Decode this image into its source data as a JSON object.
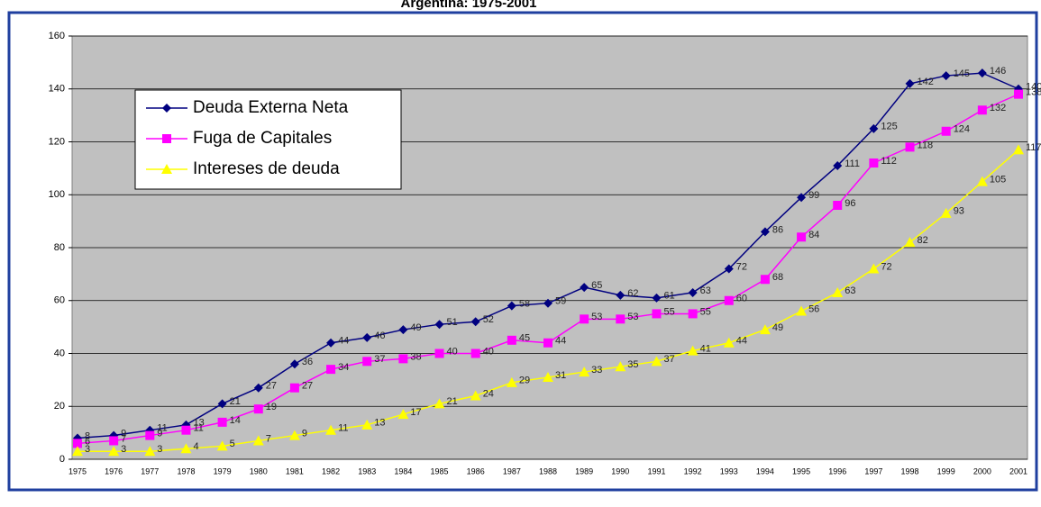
{
  "chart_data": {
    "type": "line",
    "title": "Argentina: 1975-2001",
    "categories": [
      "1975",
      "1976",
      "1977",
      "1978",
      "1979",
      "1980",
      "1981",
      "1982",
      "1983",
      "1984",
      "1985",
      "1986",
      "1987",
      "1988",
      "1989",
      "1990",
      "1991",
      "1992",
      "1993",
      "1994",
      "1995",
      "1996",
      "1997",
      "1998",
      "1999",
      "2000",
      "2001"
    ],
    "series": [
      {
        "name": "Deuda Externa Neta",
        "color": "#000080",
        "marker": "diamond",
        "values": [
          8,
          9,
          11,
          13,
          21,
          27,
          36,
          44,
          46,
          49,
          51,
          52,
          58,
          59,
          65,
          62,
          61,
          63,
          72,
          86,
          99,
          111,
          125,
          142,
          145,
          146,
          140
        ]
      },
      {
        "name": "Fuga de Capitales",
        "color": "#ff00ff",
        "marker": "square",
        "values": [
          6,
          7,
          9,
          11,
          14,
          19,
          27,
          34,
          37,
          38,
          40,
          40,
          45,
          44,
          53,
          53,
          55,
          55,
          60,
          68,
          84,
          96,
          112,
          118,
          124,
          132,
          138
        ]
      },
      {
        "name": "Intereses de deuda",
        "color": "#ffff00",
        "marker": "triangle",
        "values": [
          3,
          3,
          3,
          4,
          5,
          7,
          9,
          11,
          13,
          17,
          21,
          24,
          29,
          31,
          33,
          35,
          37,
          41,
          44,
          49,
          56,
          63,
          72,
          82,
          93,
          105,
          117
        ]
      }
    ],
    "ylim": [
      0,
      160
    ],
    "yticks": [
      0,
      20,
      40,
      60,
      80,
      100,
      120,
      140,
      160
    ],
    "grid": true,
    "legend": "upper left"
  }
}
